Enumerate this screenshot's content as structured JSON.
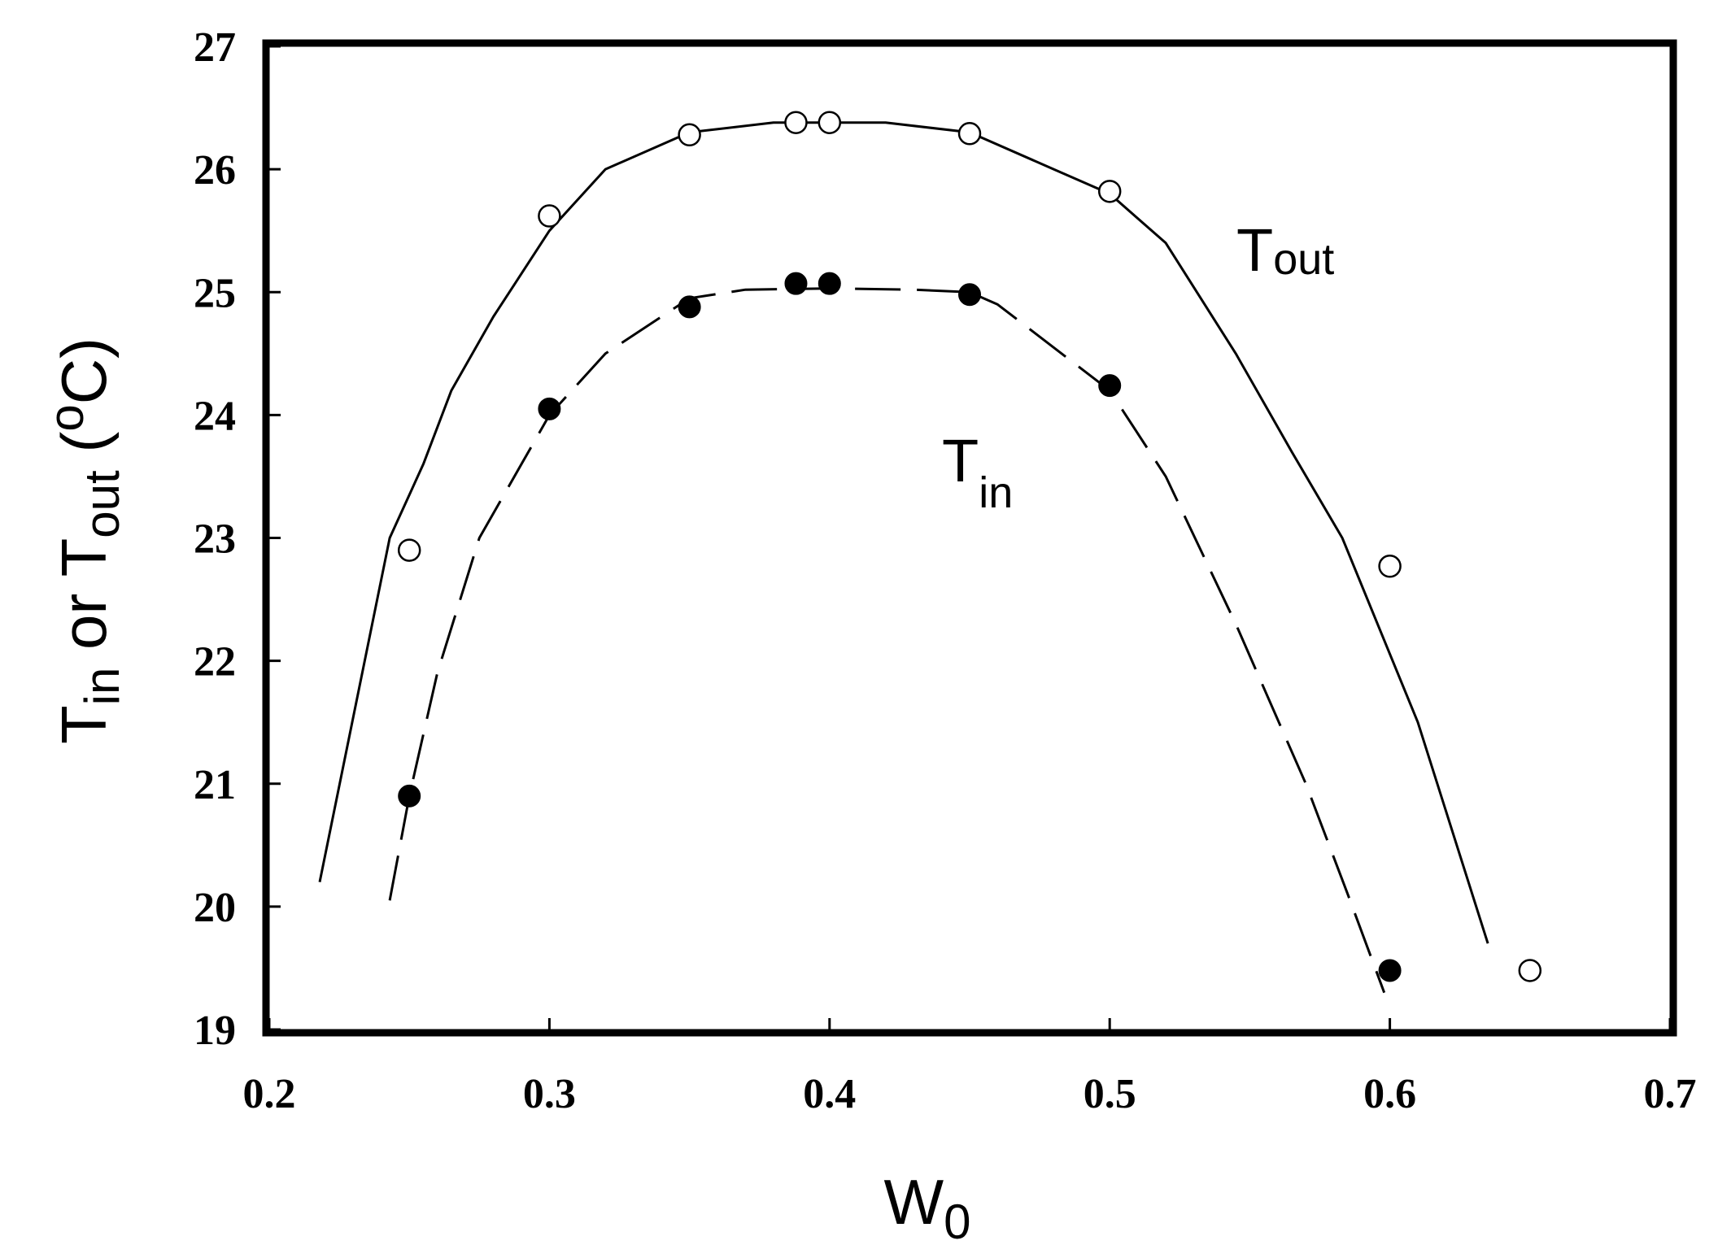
{
  "chart_data": {
    "type": "line",
    "xlabel": {
      "main": "W",
      "sub": "0"
    },
    "ylabel": {
      "t1": "T",
      "t1_sub": "in",
      "mid": " or ",
      "t2": "T",
      "t2_sub": "out",
      "pre_unit": " (",
      "deg": "o",
      "unit": "C)"
    },
    "xlim": [
      0.2,
      0.7
    ],
    "ylim": [
      19,
      27
    ],
    "x_ticks": [
      "0.2",
      "0.3",
      "0.4",
      "0.5",
      "0.6",
      "0.7"
    ],
    "y_ticks": [
      "19",
      "20",
      "21",
      "22",
      "23",
      "24",
      "25",
      "26",
      "27"
    ],
    "grid": false,
    "series": [
      {
        "name": "T",
        "name_sub": "out",
        "marker": "open-circle",
        "line_style": "solid",
        "points": [
          {
            "x": 0.25,
            "y": 22.9
          },
          {
            "x": 0.3,
            "y": 25.62
          },
          {
            "x": 0.35,
            "y": 26.28
          },
          {
            "x": 0.388,
            "y": 26.38
          },
          {
            "x": 0.4,
            "y": 26.38
          },
          {
            "x": 0.45,
            "y": 26.29
          },
          {
            "x": 0.5,
            "y": 25.82
          },
          {
            "x": 0.6,
            "y": 22.77
          },
          {
            "x": 0.65,
            "y": 19.48
          }
        ],
        "fit": [
          [
            0.218,
            20.2
          ],
          [
            0.243,
            23.0
          ],
          [
            0.255,
            23.6
          ],
          [
            0.265,
            24.2
          ],
          [
            0.28,
            24.8
          ],
          [
            0.3,
            25.5
          ],
          [
            0.32,
            26.0
          ],
          [
            0.35,
            26.3
          ],
          [
            0.38,
            26.38
          ],
          [
            0.42,
            26.38
          ],
          [
            0.45,
            26.3
          ],
          [
            0.48,
            26.0
          ],
          [
            0.5,
            25.8
          ],
          [
            0.52,
            25.4
          ],
          [
            0.545,
            24.5
          ],
          [
            0.565,
            23.7
          ],
          [
            0.583,
            23.0
          ],
          [
            0.61,
            21.5
          ],
          [
            0.635,
            19.7
          ]
        ]
      },
      {
        "name": "T",
        "name_sub": "in",
        "marker": "filled-circle",
        "line_style": "dashed",
        "points": [
          {
            "x": 0.25,
            "y": 20.9
          },
          {
            "x": 0.3,
            "y": 24.05
          },
          {
            "x": 0.35,
            "y": 24.88
          },
          {
            "x": 0.388,
            "y": 25.07
          },
          {
            "x": 0.4,
            "y": 25.07
          },
          {
            "x": 0.45,
            "y": 24.98
          },
          {
            "x": 0.5,
            "y": 24.24
          },
          {
            "x": 0.6,
            "y": 19.48
          }
        ],
        "fit": [
          [
            0.243,
            20.05
          ],
          [
            0.25,
            20.9
          ],
          [
            0.26,
            21.9
          ],
          [
            0.275,
            23.0
          ],
          [
            0.29,
            23.6
          ],
          [
            0.3,
            24.0
          ],
          [
            0.32,
            24.5
          ],
          [
            0.35,
            24.95
          ],
          [
            0.37,
            25.02
          ],
          [
            0.4,
            25.03
          ],
          [
            0.43,
            25.02
          ],
          [
            0.45,
            25.0
          ],
          [
            0.46,
            24.9
          ],
          [
            0.48,
            24.55
          ],
          [
            0.5,
            24.2
          ],
          [
            0.52,
            23.5
          ],
          [
            0.545,
            22.3
          ],
          [
            0.57,
            21.0
          ],
          [
            0.585,
            20.1
          ],
          [
            0.598,
            19.3
          ]
        ]
      }
    ]
  }
}
